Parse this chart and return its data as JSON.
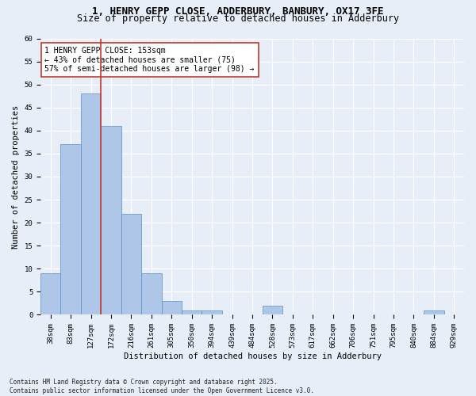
{
  "title": "1, HENRY GEPP CLOSE, ADDERBURY, BANBURY, OX17 3FE",
  "subtitle": "Size of property relative to detached houses in Adderbury",
  "xlabel": "Distribution of detached houses by size in Adderbury",
  "ylabel": "Number of detached properties",
  "categories": [
    "38sqm",
    "83sqm",
    "127sqm",
    "172sqm",
    "216sqm",
    "261sqm",
    "305sqm",
    "350sqm",
    "394sqm",
    "439sqm",
    "484sqm",
    "528sqm",
    "573sqm",
    "617sqm",
    "662sqm",
    "706sqm",
    "751sqm",
    "795sqm",
    "840sqm",
    "884sqm",
    "929sqm"
  ],
  "values": [
    9,
    37,
    48,
    41,
    22,
    9,
    3,
    1,
    1,
    0,
    0,
    2,
    0,
    0,
    0,
    0,
    0,
    0,
    0,
    1,
    0
  ],
  "bar_color": "#aec6e8",
  "bar_edge_color": "#5a8fc0",
  "background_color": "#e8eef8",
  "grid_color": "#ffffff",
  "vline_color": "#c0392b",
  "annotation_text": "1 HENRY GEPP CLOSE: 153sqm\n← 43% of detached houses are smaller (75)\n57% of semi-detached houses are larger (98) →",
  "annotation_box_color": "#ffffff",
  "annotation_box_edge": "#c0392b",
  "ylim": [
    0,
    60
  ],
  "yticks": [
    0,
    5,
    10,
    15,
    20,
    25,
    30,
    35,
    40,
    45,
    50,
    55,
    60
  ],
  "footer": "Contains HM Land Registry data © Crown copyright and database right 2025.\nContains public sector information licensed under the Open Government Licence v3.0.",
  "title_fontsize": 9,
  "subtitle_fontsize": 8.5,
  "label_fontsize": 7.5,
  "tick_fontsize": 6.5,
  "ann_fontsize": 7,
  "footer_fontsize": 5.5
}
